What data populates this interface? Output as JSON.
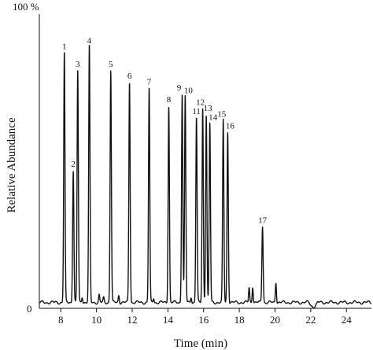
{
  "chart_data": {
    "type": "line",
    "title": "",
    "xlabel": "Time (min)",
    "ylabel": "Relative Abundance",
    "y_top_label": "100 %",
    "y_bottom_label": "0",
    "xlim": [
      6.8,
      25.4
    ],
    "ylim": [
      0,
      100
    ],
    "x_ticks": [
      8,
      10,
      12,
      14,
      16,
      18,
      20,
      22,
      24
    ],
    "x_tick_labels": [
      "8",
      "10",
      "12",
      "14",
      "16",
      "18",
      "20",
      "22",
      "24"
    ],
    "grid": false,
    "baseline": 2,
    "series": [
      {
        "color": "#111111",
        "peaks": [
          {
            "label": "1",
            "x": 8.2,
            "y": 87
          },
          {
            "label": "2",
            "x": 8.7,
            "y": 47
          },
          {
            "label": "3",
            "x": 8.95,
            "y": 81
          },
          {
            "label": "4",
            "x": 9.6,
            "y": 89
          },
          {
            "label": "5",
            "x": 10.8,
            "y": 81
          },
          {
            "label": "6",
            "x": 11.85,
            "y": 77
          },
          {
            "label": "7",
            "x": 12.95,
            "y": 75
          },
          {
            "label": "8",
            "x": 14.05,
            "y": 69
          },
          {
            "label": "9",
            "x": 14.8,
            "y": 73
          },
          {
            "label": "10",
            "x": 14.97,
            "y": 72
          },
          {
            "label": "11",
            "x": 15.6,
            "y": 65
          },
          {
            "label": "12",
            "x": 15.95,
            "y": 68
          },
          {
            "label": "13",
            "x": 16.15,
            "y": 66
          },
          {
            "label": "14",
            "x": 16.35,
            "y": 63
          },
          {
            "label": "15",
            "x": 17.1,
            "y": 64
          },
          {
            "label": "16",
            "x": 17.35,
            "y": 60
          },
          {
            "label": "17",
            "x": 19.3,
            "y": 28
          }
        ],
        "minor_peaks": [
          {
            "x": 9.2,
            "y": 4
          },
          {
            "x": 10.15,
            "y": 4.5
          },
          {
            "x": 10.4,
            "y": 3.5
          },
          {
            "x": 11.25,
            "y": 4.5
          },
          {
            "x": 13.2,
            "y": 3.5
          },
          {
            "x": 15.3,
            "y": 4
          },
          {
            "x": 18.55,
            "y": 7
          },
          {
            "x": 18.75,
            "y": 7.5
          },
          {
            "x": 20.05,
            "y": 9
          }
        ]
      }
    ]
  }
}
